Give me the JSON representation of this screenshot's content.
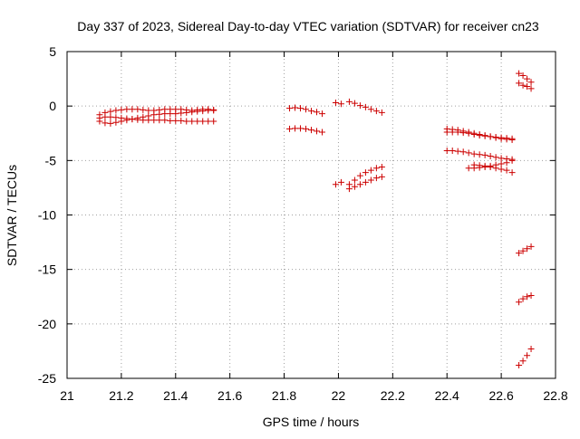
{
  "chart_data": {
    "type": "scatter",
    "title": "Day 337 of 2023, Sidereal Day-to-day VTEC variation (SDTVAR) for receiver cn23",
    "xlabel": "GPS time / hours",
    "ylabel": "SDTVAR / TECUs",
    "xlim": [
      21,
      22.8
    ],
    "ylim": [
      -25,
      5
    ],
    "xticks": [
      21,
      21.2,
      21.4,
      21.6,
      21.8,
      22,
      22.2,
      22.4,
      22.6,
      22.8
    ],
    "xtick_labels": [
      "21",
      "21.2",
      "21.4",
      "21.6",
      "21.8",
      "22",
      "22.2",
      "22.4",
      "22.6",
      "22.8"
    ],
    "yticks": [
      5,
      0,
      -5,
      -10,
      -15,
      -20,
      -25
    ],
    "ytick_labels": [
      "5",
      "0",
      "-5",
      "-10",
      "-15",
      "-20",
      "-25"
    ],
    "grid": true,
    "marker": "+",
    "marker_color": "#cc0000",
    "series": [
      {
        "name": "s1",
        "x": [
          21.12,
          21.14,
          21.16,
          21.18,
          21.2,
          21.22,
          21.24,
          21.26,
          21.28,
          21.3,
          21.32,
          21.34,
          21.36,
          21.38,
          21.4,
          21.42,
          21.44,
          21.46,
          21.48,
          21.5,
          21.52,
          21.54
        ],
        "y": [
          -0.8,
          -0.6,
          -0.5,
          -0.4,
          -0.35,
          -0.3,
          -0.3,
          -0.3,
          -0.35,
          -0.4,
          -0.4,
          -0.35,
          -0.3,
          -0.3,
          -0.3,
          -0.3,
          -0.35,
          -0.4,
          -0.35,
          -0.3,
          -0.3,
          -0.35
        ]
      },
      {
        "name": "s2",
        "x": [
          21.12,
          21.14,
          21.16,
          21.18,
          21.2,
          21.22,
          21.24,
          21.26,
          21.28,
          21.3,
          21.32,
          21.34,
          21.36,
          21.38,
          21.4,
          21.42,
          21.44,
          21.46,
          21.48,
          21.5,
          21.52,
          21.54
        ],
        "y": [
          -1.4,
          -1.55,
          -1.6,
          -1.5,
          -1.4,
          -1.3,
          -1.2,
          -1.1,
          -1.0,
          -0.9,
          -0.8,
          -0.75,
          -0.7,
          -0.7,
          -0.7,
          -0.65,
          -0.6,
          -0.55,
          -0.5,
          -0.45,
          -0.4,
          -0.4
        ]
      },
      {
        "name": "s3",
        "x": [
          21.12,
          21.14,
          21.16,
          21.18,
          21.2,
          21.22,
          21.24,
          21.26,
          21.28,
          21.3,
          21.32,
          21.34,
          21.36,
          21.38,
          21.4,
          21.42,
          21.44,
          21.46,
          21.48,
          21.5,
          21.52,
          21.54
        ],
        "y": [
          -1.1,
          -1.0,
          -1.0,
          -1.05,
          -1.1,
          -1.15,
          -1.2,
          -1.25,
          -1.3,
          -1.3,
          -1.3,
          -1.3,
          -1.3,
          -1.35,
          -1.35,
          -1.35,
          -1.4,
          -1.4,
          -1.4,
          -1.4,
          -1.4,
          -1.4
        ]
      },
      {
        "name": "s4",
        "x": [
          21.82,
          21.84,
          21.86,
          21.88,
          21.9,
          21.92,
          21.94
        ],
        "y": [
          -0.2,
          -0.15,
          -0.2,
          -0.3,
          -0.45,
          -0.55,
          -0.7
        ]
      },
      {
        "name": "s5",
        "x": [
          21.82,
          21.84,
          21.86,
          21.88,
          21.9,
          21.92,
          21.94
        ],
        "y": [
          -2.1,
          -2.05,
          -2.05,
          -2.1,
          -2.2,
          -2.3,
          -2.4
        ]
      },
      {
        "name": "s6",
        "x": [
          21.99,
          22.01,
          22.04,
          22.06,
          22.08,
          22.1,
          22.12,
          22.14,
          22.16
        ],
        "y": [
          0.3,
          0.2,
          0.4,
          0.25,
          0.05,
          -0.1,
          -0.3,
          -0.45,
          -0.6
        ]
      },
      {
        "name": "s7",
        "x": [
          21.99,
          22.01,
          22.04,
          22.06,
          22.08,
          22.1,
          22.12,
          22.14,
          22.16
        ],
        "y": [
          -7.2,
          -7.0,
          -7.2,
          -6.8,
          -6.4,
          -6.1,
          -5.9,
          -5.7,
          -5.6
        ]
      },
      {
        "name": "s8",
        "x": [
          22.04,
          22.06,
          22.08,
          22.1,
          22.12,
          22.14,
          22.16
        ],
        "y": [
          -7.6,
          -7.4,
          -7.2,
          -7.0,
          -6.8,
          -6.6,
          -6.5
        ]
      },
      {
        "name": "s9",
        "x": [
          22.4,
          22.42,
          22.44,
          22.46,
          22.48,
          22.5,
          22.52,
          22.54,
          22.56,
          22.58,
          22.6,
          22.62,
          22.64
        ],
        "y": [
          -2.1,
          -2.15,
          -2.2,
          -2.3,
          -2.4,
          -2.5,
          -2.6,
          -2.7,
          -2.8,
          -2.85,
          -2.9,
          -2.95,
          -3.0
        ]
      },
      {
        "name": "s10",
        "x": [
          22.4,
          22.42,
          22.44,
          22.46,
          22.48,
          22.5,
          22.52,
          22.54,
          22.56,
          22.58,
          22.6,
          22.62,
          22.64
        ],
        "y": [
          -2.4,
          -2.4,
          -2.4,
          -2.45,
          -2.5,
          -2.6,
          -2.7,
          -2.75,
          -2.8,
          -2.9,
          -3.0,
          -3.05,
          -3.1
        ]
      },
      {
        "name": "s11",
        "x": [
          22.4,
          22.42,
          22.44,
          22.46,
          22.48,
          22.5,
          22.52,
          22.54,
          22.56,
          22.58,
          22.6,
          22.62,
          22.64
        ],
        "y": [
          -4.1,
          -4.1,
          -4.15,
          -4.2,
          -4.3,
          -4.4,
          -4.45,
          -4.5,
          -4.6,
          -4.7,
          -4.8,
          -4.85,
          -4.9
        ]
      },
      {
        "name": "s12",
        "x": [
          22.48,
          22.5,
          22.52,
          22.54,
          22.56,
          22.58,
          22.6,
          22.62,
          22.64
        ],
        "y": [
          -5.7,
          -5.7,
          -5.65,
          -5.6,
          -5.5,
          -5.4,
          -5.3,
          -5.2,
          -5.0
        ]
      },
      {
        "name": "s13",
        "x": [
          22.5,
          22.52,
          22.54,
          22.56,
          22.58,
          22.6,
          22.62,
          22.64
        ],
        "y": [
          -5.4,
          -5.45,
          -5.5,
          -5.6,
          -5.7,
          -5.8,
          -5.9,
          -6.1
        ]
      },
      {
        "name": "s14",
        "x": [
          22.665,
          22.68,
          22.695,
          22.71
        ],
        "y": [
          3.0,
          2.8,
          2.5,
          2.2
        ]
      },
      {
        "name": "s15",
        "x": [
          22.665,
          22.68,
          22.695,
          22.71
        ],
        "y": [
          2.1,
          1.9,
          1.8,
          1.6
        ]
      },
      {
        "name": "s16",
        "x": [
          22.665,
          22.68,
          22.695,
          22.71
        ],
        "y": [
          -13.5,
          -13.3,
          -13.1,
          -12.9
        ]
      },
      {
        "name": "s17",
        "x": [
          22.665,
          22.68,
          22.695,
          22.71
        ],
        "y": [
          -18.0,
          -17.7,
          -17.5,
          -17.4
        ]
      },
      {
        "name": "s18",
        "x": [
          22.665,
          22.68,
          22.695,
          22.71
        ],
        "y": [
          -23.8,
          -23.4,
          -22.9,
          -22.3
        ]
      }
    ]
  }
}
